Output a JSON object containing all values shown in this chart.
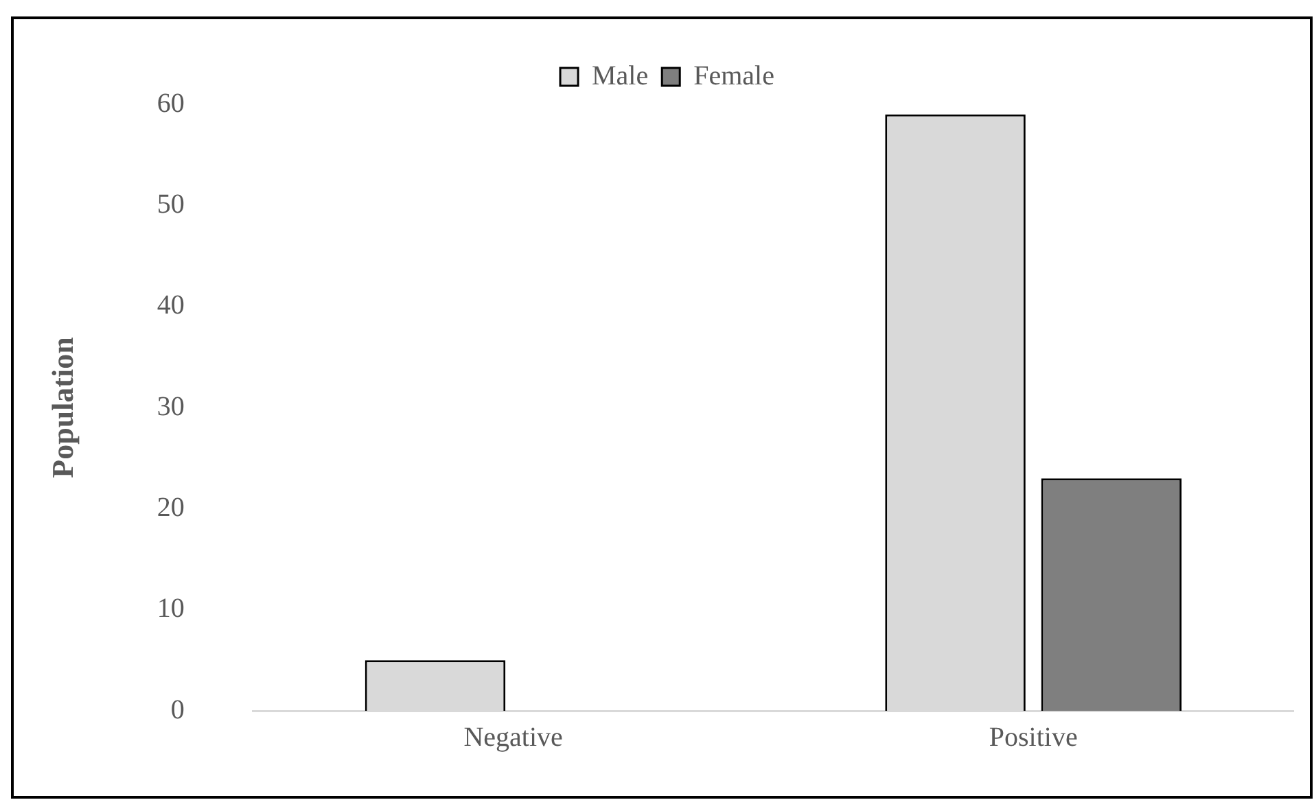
{
  "chart_data": {
    "type": "bar",
    "ylabel": "Population",
    "categories": [
      "Negative",
      "Positive"
    ],
    "series": [
      {
        "name": "Male",
        "color": "#d9d9d9",
        "values": [
          5,
          59
        ]
      },
      {
        "name": "Female",
        "color": "#7f7f7f",
        "values": [
          0,
          23
        ]
      }
    ],
    "ylim": [
      0,
      60
    ],
    "yticks": [
      0,
      10,
      20,
      30,
      40,
      50,
      60
    ],
    "grid": false,
    "legend": "top"
  }
}
